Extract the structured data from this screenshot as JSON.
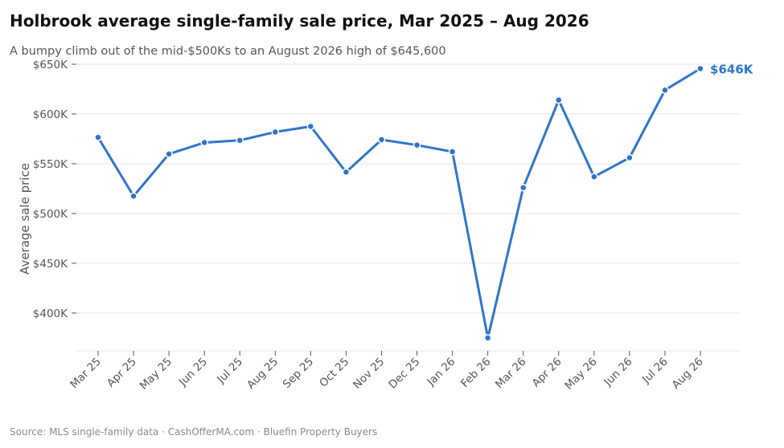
{
  "chart_data": {
    "type": "line",
    "title": "Holbrook average single-family sale price, Mar 2025 – Aug 2026",
    "subtitle": "A bumpy climb out of the mid-$500Ks to an August 2026 high of $645,600",
    "source": "Source: MLS single-family data  ·  CashOfferMA.com  ·  Bluefin Property Buyers",
    "xlabel": "",
    "ylabel": "Average sale price",
    "categories": [
      "Mar 25",
      "Apr 25",
      "May 25",
      "Jun 25",
      "Jul 25",
      "Aug 25",
      "Sep 25",
      "Oct 25",
      "Nov 25",
      "Dec 25",
      "Jan 26",
      "Feb 26",
      "Mar 26",
      "Apr 26",
      "May 26",
      "Jun 26",
      "Jul 26",
      "Aug 26"
    ],
    "values": [
      576500,
      517500,
      559800,
      571300,
      573500,
      581900,
      587500,
      541600,
      574200,
      568800,
      562100,
      375000,
      526000,
      614000,
      537000,
      556000,
      624000,
      645600
    ],
    "ylim": [
      362000,
      650000
    ],
    "yticks": [
      400000,
      450000,
      500000,
      550000,
      600000,
      650000
    ],
    "ytick_labels": [
      "$400K",
      "$450K",
      "$500K",
      "$550K",
      "$600K",
      "$650K"
    ],
    "end_label": "$646K",
    "grid": true,
    "line_color": "#2e75c9",
    "grid_color": "#e6e6e6"
  }
}
